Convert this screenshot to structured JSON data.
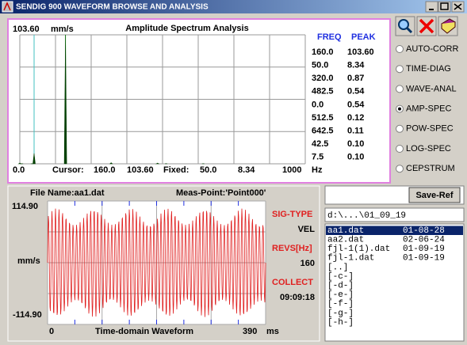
{
  "window": {
    "title": "SENDIG 900 WAVEFORM BROWSE AND ANALYSIS"
  },
  "spectrum": {
    "title": "Amplitude Spectrum Analysis",
    "top_value": "103.60",
    "top_unit": "mm/s",
    "headers": [
      "FREQ",
      "PEAK"
    ],
    "rows": [
      [
        "160.0",
        "103.60"
      ],
      [
        "50.0",
        "8.34"
      ],
      [
        "320.0",
        "0.87"
      ],
      [
        "482.5",
        "0.54"
      ],
      [
        "0.0",
        "0.54"
      ],
      [
        "512.5",
        "0.12"
      ],
      [
        "642.5",
        "0.11"
      ],
      [
        "42.5",
        "0.10"
      ],
      [
        "7.5",
        "0.10"
      ]
    ],
    "x_min": "0.0",
    "cursor_label": "Cursor:",
    "cursor_freq": "160.0",
    "cursor_value": "103.60",
    "fixed_label": "Fixed:",
    "fixed_freq": "50.0",
    "fixed_value": "8.34",
    "x_max": "1000",
    "x_unit": "Hz"
  },
  "modes": {
    "options": [
      "AUTO-CORR",
      "TIME-DIAG",
      "WAVE-ANAL",
      "AMP-SPEC",
      "POW-SPEC",
      "LOG-SPEC",
      "CEPSTRUM"
    ],
    "selected_index": 3
  },
  "waveform": {
    "file": "File Name:aa1.dat",
    "point": "Meas-Point:'Point000'",
    "y_max": "114.90",
    "y_unit": "mm/s",
    "y_min": "-114.90",
    "x_min": "0",
    "title": "Time-domain Waveform",
    "x_max": "390",
    "x_unit": "ms",
    "info": [
      {
        "label": "SIG-TYPE",
        "value": "VEL"
      },
      {
        "label": "REVS[Hz]",
        "value": "160"
      },
      {
        "label": "COLLECT",
        "value": "09:09:18"
      }
    ]
  },
  "files": {
    "save_button": "Save-Ref",
    "path": "d:\\...\\01_09_19",
    "items": [
      {
        "name": "aa1.dat",
        "date": "01-08-28"
      },
      {
        "name": "aa2.dat",
        "date": "02-06-24"
      },
      {
        "name": "fjl-1(1).dat",
        "date": "01-09-19"
      },
      {
        "name": "fjl-1.dat",
        "date": "01-09-19"
      },
      {
        "name": "[..]"
      },
      {
        "name": "[-c-]"
      },
      {
        "name": "[-d-]"
      },
      {
        "name": "[-e-]"
      },
      {
        "name": "[-f-]"
      },
      {
        "name": "[-g-]"
      },
      {
        "name": "[-h-]"
      }
    ],
    "selected_index": 0
  }
}
